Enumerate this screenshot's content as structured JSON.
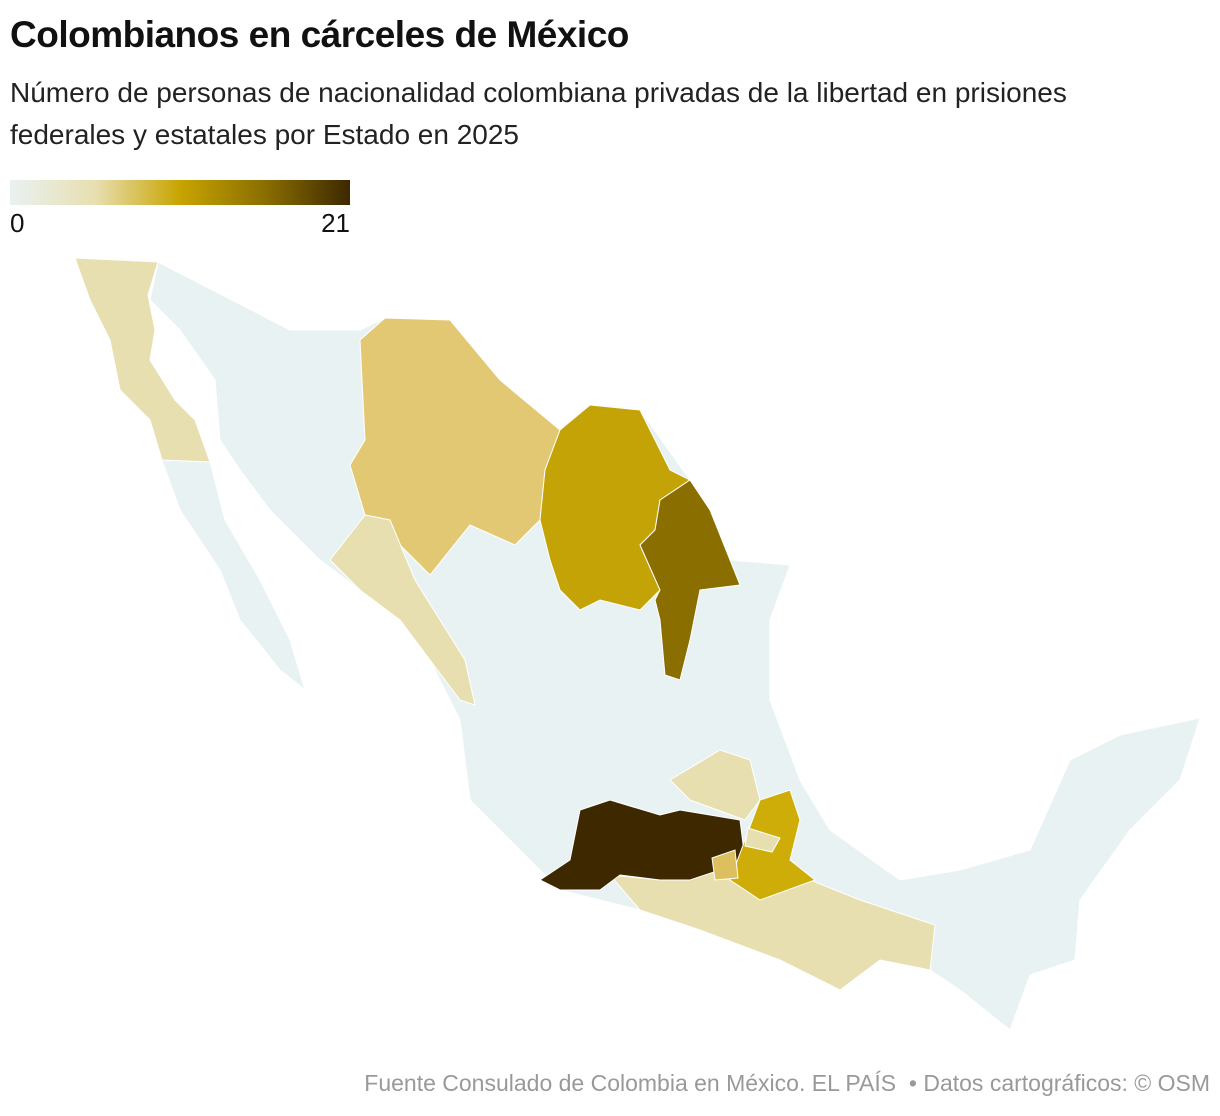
{
  "title": "Colombianos en cárceles de México",
  "subtitle": "Número de personas de nacionalidad colombiana privadas de la libertad en prisiones federales y estatales por Estado en 2025",
  "legend": {
    "min": 0,
    "max": 21,
    "colors": [
      "#e9f2f2",
      "#e8dfb0",
      "#c8a400",
      "#8a6e00",
      "#3d2800"
    ]
  },
  "source": "Fuente Consulado de Colombia en México. EL PAÍS",
  "credit": "• Datos cartográficos: © OSM"
}
